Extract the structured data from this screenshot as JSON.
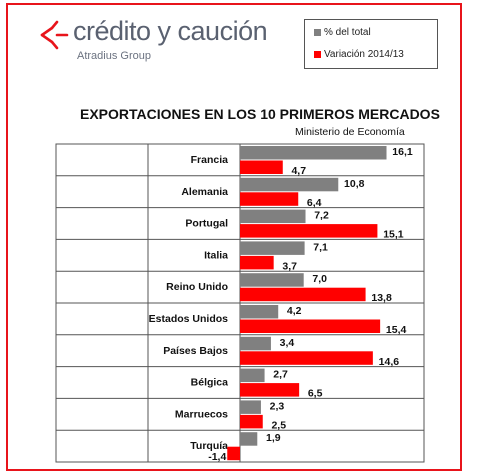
{
  "brand": {
    "name": "crédito y caución",
    "tagline": "Atradius Group",
    "accent_color": "#e8141b",
    "text_color": "#5a6170"
  },
  "legend": {
    "items": [
      {
        "label": "% del total",
        "color": "#808080"
      },
      {
        "label": "Variación 2014/13",
        "color": "#ff0000"
      }
    ],
    "placement": "top-right"
  },
  "chart_data": {
    "type": "bar",
    "orientation": "horizontal",
    "title": "EXPORTACIONES EN LOS 10 PRIMEROS MERCADOS",
    "subtitle": "Ministerio de Economía",
    "categories": [
      "Francia",
      "Alemania",
      "Portugal",
      "Italia",
      "Reino Unido",
      "Estados Unidos",
      "Países Bajos",
      "Bélgica",
      "Marruecos",
      "Turquía"
    ],
    "series": [
      {
        "name": "% del total",
        "color": "#808080",
        "values": [
          16.1,
          10.8,
          7.2,
          7.1,
          7.0,
          4.2,
          3.4,
          2.7,
          2.3,
          1.9
        ],
        "labels": [
          "16,1",
          "10,8",
          "7,2",
          "7,1",
          "7,0",
          "4,2",
          "3,4",
          "2,7",
          "2,3",
          "1,9"
        ]
      },
      {
        "name": "Variación 2014/13",
        "color": "#ff0000",
        "values": [
          4.7,
          6.4,
          15.1,
          3.7,
          13.8,
          15.4,
          14.6,
          6.5,
          2.5,
          -1.4
        ],
        "labels": [
          "4,7",
          "6,4",
          "15,1",
          "3,7",
          "13,8",
          "15,4",
          "14,6",
          "6,5",
          "2,5",
          "-1,4"
        ]
      }
    ],
    "grid": true
  }
}
